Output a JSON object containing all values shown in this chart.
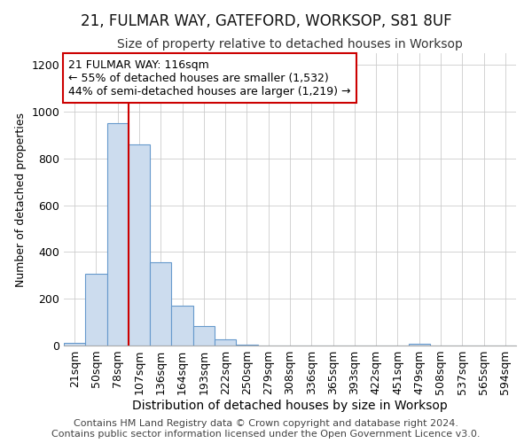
{
  "title_line1": "21, FULMAR WAY, GATEFORD, WORKSOP, S81 8UF",
  "title_line2": "Size of property relative to detached houses in Worksop",
  "xlabel": "Distribution of detached houses by size in Worksop",
  "ylabel": "Number of detached properties",
  "footnote_line1": "Contains HM Land Registry data © Crown copyright and database right 2024.",
  "footnote_line2": "Contains public sector information licensed under the Open Government Licence v3.0.",
  "bin_labels": [
    "21sqm",
    "50sqm",
    "78sqm",
    "107sqm",
    "136sqm",
    "164sqm",
    "193sqm",
    "222sqm",
    "250sqm",
    "279sqm",
    "308sqm",
    "336sqm",
    "365sqm",
    "393sqm",
    "422sqm",
    "451sqm",
    "479sqm",
    "508sqm",
    "537sqm",
    "565sqm",
    "594sqm"
  ],
  "bar_values": [
    10,
    308,
    950,
    860,
    355,
    170,
    85,
    25,
    5,
    0,
    0,
    0,
    0,
    0,
    0,
    0,
    8,
    0,
    0,
    0,
    0
  ],
  "bar_color": "#ccdcee",
  "bar_edge_color": "#6699cc",
  "vline_x_index": 3,
  "annotation_text_line1": "21 FULMAR WAY: 116sqm",
  "annotation_text_line2": "← 55% of detached houses are smaller (1,532)",
  "annotation_text_line3": "44% of semi-detached houses are larger (1,219) →",
  "annotation_box_color": "#ffffff",
  "annotation_box_edge": "#cc0000",
  "vline_color": "#cc0000",
  "ylim": [
    0,
    1250
  ],
  "yticks": [
    0,
    200,
    400,
    600,
    800,
    1000,
    1200
  ],
  "grid_color": "#cccccc",
  "bg_color": "#ffffff",
  "title1_fontsize": 12,
  "title2_fontsize": 10,
  "xlabel_fontsize": 10,
  "ylabel_fontsize": 9,
  "tick_fontsize": 9,
  "footnote_fontsize": 8
}
